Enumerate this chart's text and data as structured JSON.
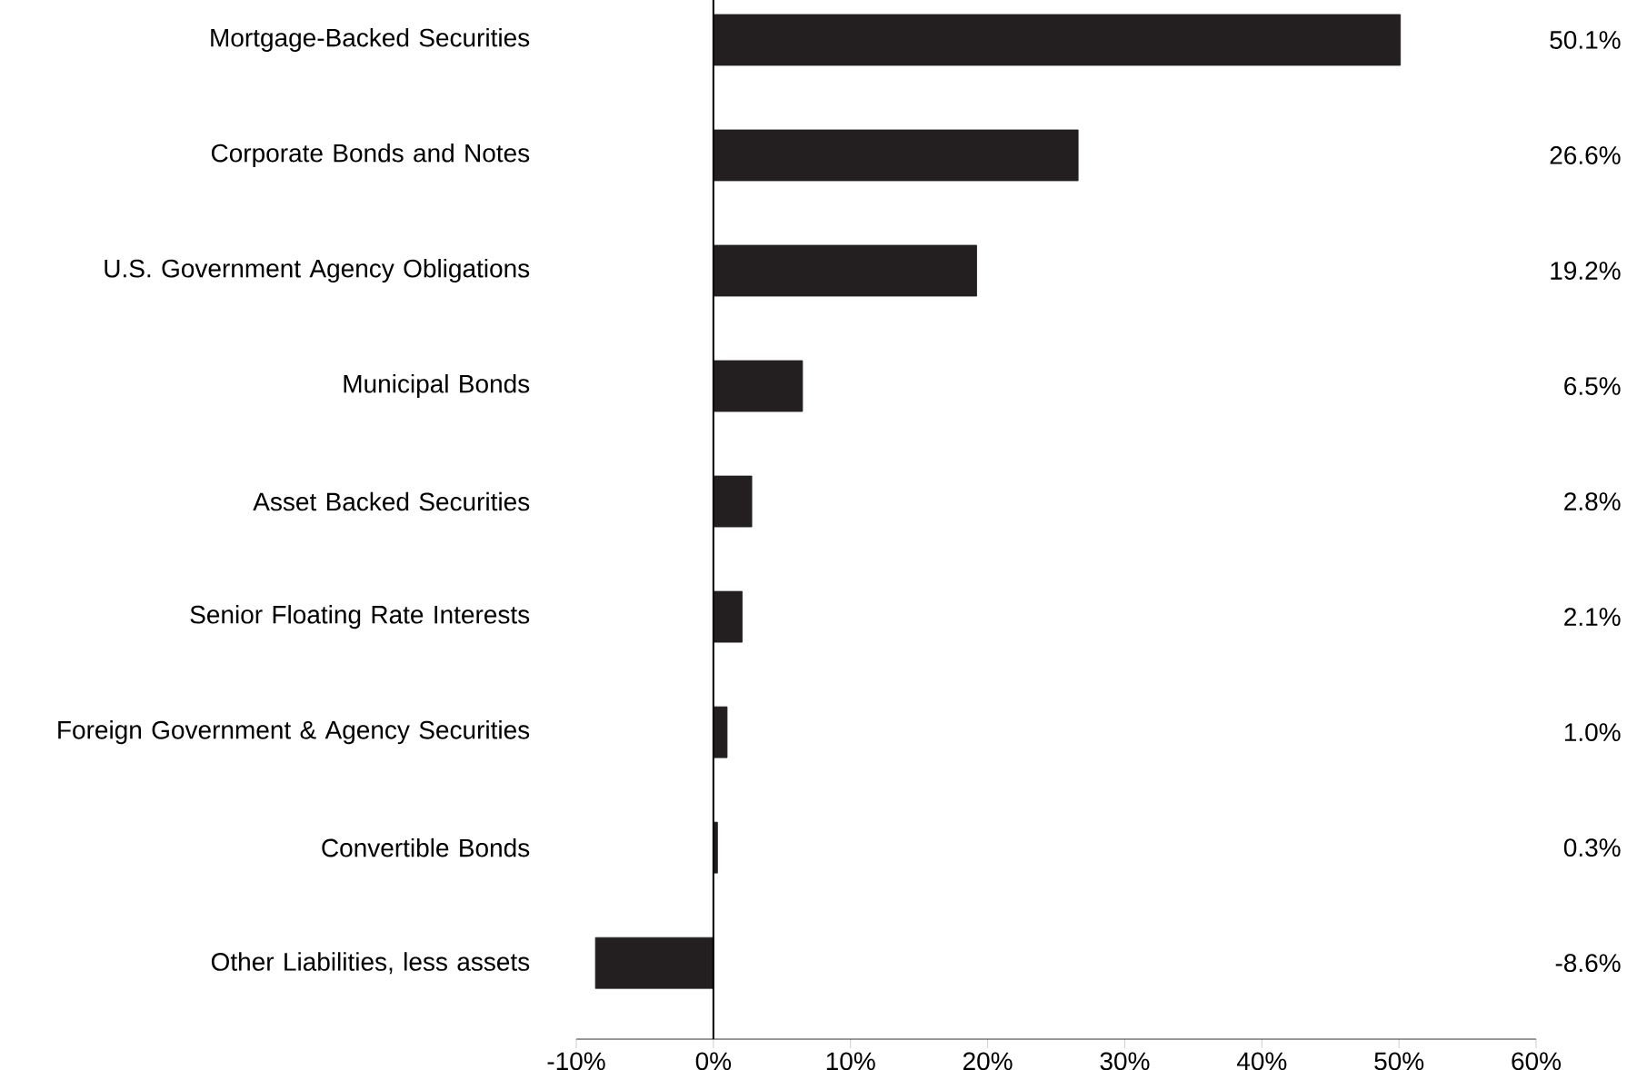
{
  "chart_data": {
    "type": "bar",
    "orientation": "horizontal",
    "categories": [
      "Mortgage-Backed Securities",
      "Corporate Bonds and Notes",
      "U.S. Government Agency Obligations",
      "Municipal Bonds",
      "Asset Backed Securities",
      "Senior Floating Rate Interests",
      "Foreign Government & Agency Securities",
      "Convertible Bonds",
      "Other Liabilities, less assets"
    ],
    "values": [
      50.1,
      26.6,
      19.2,
      6.5,
      2.8,
      2.1,
      1.0,
      0.3,
      -8.6
    ],
    "value_labels": [
      "50.1%",
      "26.6%",
      "19.2%",
      "6.5%",
      "2.8%",
      "2.1%",
      "1.0%",
      "0.3%",
      "-8.6%"
    ],
    "color": "#231f20",
    "xlim": [
      -10,
      60
    ],
    "xticks": [
      {
        "value": -10,
        "label": "-10%"
      },
      {
        "value": 0,
        "label": "0%"
      },
      {
        "value": 10,
        "label": "10%"
      },
      {
        "value": 20,
        "label": "20%"
      },
      {
        "value": 30,
        "label": "30%"
      },
      {
        "value": 40,
        "label": "40%"
      },
      {
        "value": 50,
        "label": "50%"
      },
      {
        "value": 60,
        "label": "60%"
      }
    ],
    "line_style": "solid"
  }
}
